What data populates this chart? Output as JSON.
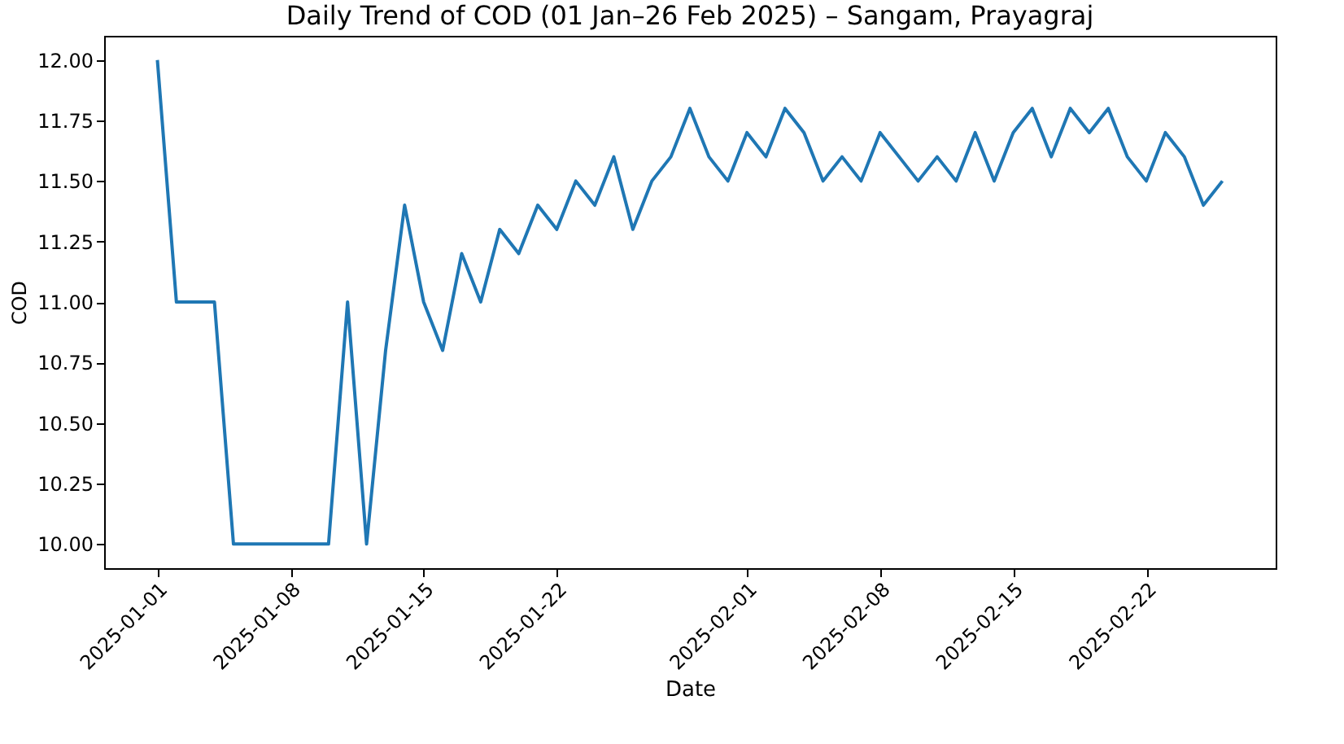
{
  "chart_data": {
    "type": "line",
    "title": "Daily Trend of COD (01 Jan–26 Feb 2025) – Sangam, Prayagraj",
    "xlabel": "Date",
    "ylabel": "COD",
    "x": [
      "2025-01-01",
      "2025-01-02",
      "2025-01-03",
      "2025-01-04",
      "2025-01-05",
      "2025-01-06",
      "2025-01-07",
      "2025-01-08",
      "2025-01-09",
      "2025-01-10",
      "2025-01-11",
      "2025-01-12",
      "2025-01-13",
      "2025-01-14",
      "2025-01-15",
      "2025-01-16",
      "2025-01-17",
      "2025-01-18",
      "2025-01-19",
      "2025-01-20",
      "2025-01-21",
      "2025-01-22",
      "2025-01-23",
      "2025-01-24",
      "2025-01-25",
      "2025-01-26",
      "2025-01-27",
      "2025-01-28",
      "2025-01-29",
      "2025-01-30",
      "2025-01-31",
      "2025-02-01",
      "2025-02-02",
      "2025-02-03",
      "2025-02-04",
      "2025-02-05",
      "2025-02-06",
      "2025-02-07",
      "2025-02-08",
      "2025-02-09",
      "2025-02-10",
      "2025-02-11",
      "2025-02-12",
      "2025-02-13",
      "2025-02-14",
      "2025-02-15",
      "2025-02-16",
      "2025-02-17",
      "2025-02-18",
      "2025-02-19",
      "2025-02-20",
      "2025-02-21",
      "2025-02-22",
      "2025-02-23",
      "2025-02-24",
      "2025-02-25",
      "2025-02-26"
    ],
    "series": [
      {
        "color": "#1f77b4",
        "values": [
          12.0,
          11.0,
          11.0,
          11.0,
          10.0,
          10.0,
          10.0,
          10.0,
          10.0,
          10.0,
          11.0,
          10.0,
          10.8,
          11.4,
          11.0,
          10.8,
          11.2,
          11.0,
          11.3,
          11.2,
          11.4,
          11.3,
          11.5,
          11.4,
          11.6,
          11.3,
          11.5,
          11.6,
          11.8,
          11.6,
          11.5,
          11.7,
          11.6,
          11.8,
          11.7,
          11.5,
          11.6,
          11.5,
          11.7,
          11.6,
          11.5,
          11.6,
          11.5,
          11.7,
          11.5,
          11.7,
          11.8,
          11.6,
          11.8,
          11.7,
          11.8,
          11.6,
          11.5,
          11.7,
          11.6,
          11.4,
          11.5
        ]
      }
    ],
    "xlim": [
      "2024-12-29T04:48",
      "2025-02-28T19:12"
    ],
    "xticks": [
      "2025-01-01",
      "2025-01-08",
      "2025-01-15",
      "2025-01-22",
      "2025-02-01",
      "2025-02-08",
      "2025-02-15",
      "2025-02-22"
    ],
    "ylim": [
      9.9,
      12.1
    ],
    "yticks": [
      {
        "value": 10,
        "label": "10.00"
      },
      {
        "value": 10.25,
        "label": "10.25"
      },
      {
        "value": 10.5,
        "label": "10.50"
      },
      {
        "value": 10.75,
        "label": "10.75"
      },
      {
        "value": 11,
        "label": "11.00"
      },
      {
        "value": 11.25,
        "label": "11.25"
      },
      {
        "value": 11.5,
        "label": "11.50"
      },
      {
        "value": 11.75,
        "label": "11.75"
      },
      {
        "value": 12,
        "label": "12.00"
      }
    ],
    "grid": false,
    "marker": "none",
    "line_style": "solid"
  }
}
